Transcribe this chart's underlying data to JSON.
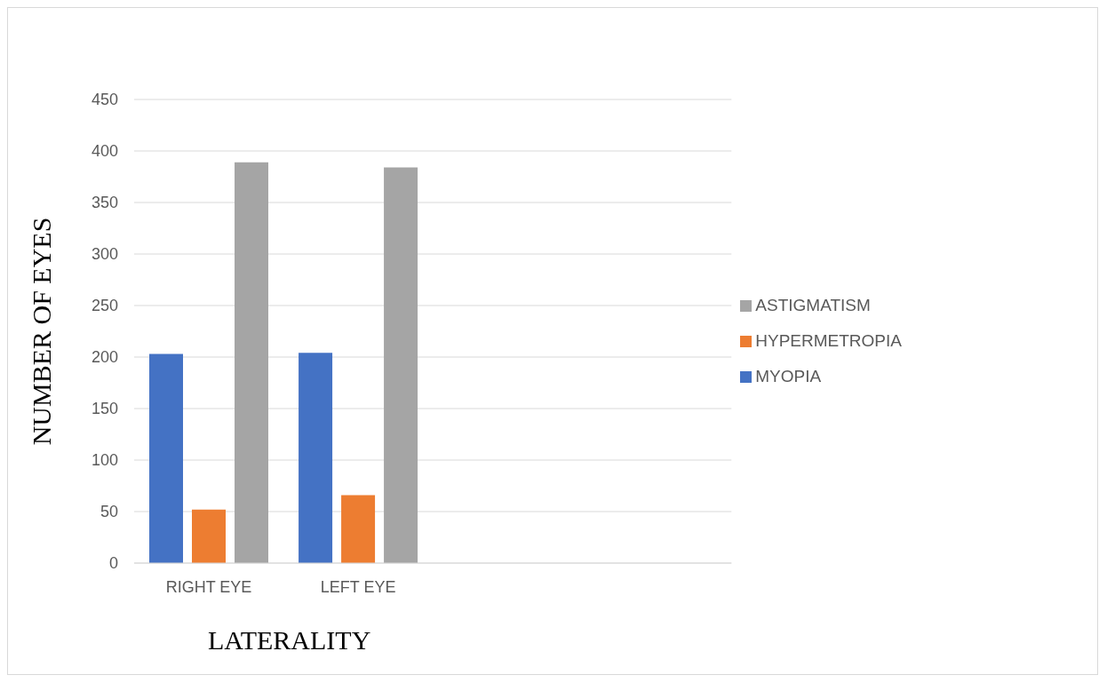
{
  "chart_data": {
    "type": "bar",
    "xlabel": "LATERALITY",
    "ylabel": "NUMBER OF EYES",
    "categories": [
      "RIGHT EYE",
      "LEFT EYE",
      null,
      null
    ],
    "series": [
      {
        "name": "MYOPIA",
        "color": "#4472c4",
        "values": [
          203,
          204,
          null,
          null
        ]
      },
      {
        "name": "HYPERMETROPIA",
        "color": "#ed7d31",
        "values": [
          52,
          66,
          null,
          null
        ]
      },
      {
        "name": "ASTIGMATISM",
        "color": "#a5a5a5",
        "values": [
          389,
          384,
          null,
          null
        ]
      }
    ],
    "ylim": [
      0,
      450
    ],
    "yticks": [
      0,
      50,
      100,
      150,
      200,
      250,
      300,
      350,
      400,
      450
    ],
    "grid": "y",
    "legend": "right"
  }
}
